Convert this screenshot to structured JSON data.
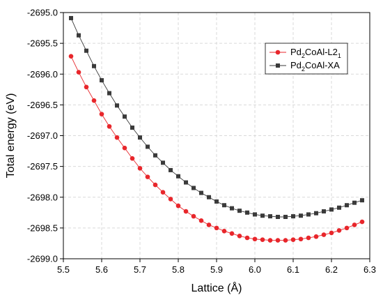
{
  "chart_data": {
    "type": "line",
    "xlabel": "Lattice (Å)",
    "ylabel": "Total energy (eV)",
    "xlim": [
      5.5,
      6.3
    ],
    "ylim": [
      -2699.0,
      -2695.0
    ],
    "x_ticks": [
      "5.5",
      "5.6",
      "5.7",
      "5.8",
      "5.9",
      "6.0",
      "6.1",
      "6.2",
      "6.3"
    ],
    "y_ticks": [
      "-2695.0",
      "-2695.5",
      "-2696.0",
      "-2696.5",
      "-2697.0",
      "-2697.5",
      "-2698.0",
      "-2698.5",
      "-2699.0"
    ],
    "grid": true,
    "legend_position": "top-right",
    "series": [
      {
        "name_main": "Pd",
        "name_sub1": "2",
        "name_mid": "CoAl-L2",
        "name_sub2": "1",
        "color": "#e8262b",
        "marker": "circle",
        "x": [
          5.52,
          5.54,
          5.56,
          5.58,
          5.6,
          5.62,
          5.64,
          5.66,
          5.68,
          5.7,
          5.72,
          5.74,
          5.76,
          5.78,
          5.8,
          5.82,
          5.84,
          5.86,
          5.88,
          5.9,
          5.92,
          5.94,
          5.96,
          5.98,
          6.0,
          6.02,
          6.04,
          6.06,
          6.08,
          6.1,
          6.12,
          6.14,
          6.16,
          6.18,
          6.2,
          6.22,
          6.24,
          6.26,
          6.28
        ],
        "y": [
          -2695.71,
          -2695.97,
          -2696.21,
          -2696.43,
          -2696.65,
          -2696.85,
          -2697.03,
          -2697.2,
          -2697.37,
          -2697.53,
          -2697.67,
          -2697.8,
          -2697.92,
          -2698.03,
          -2698.14,
          -2698.23,
          -2698.31,
          -2698.38,
          -2698.45,
          -2698.5,
          -2698.55,
          -2698.59,
          -2698.63,
          -2698.66,
          -2698.68,
          -2698.69,
          -2698.7,
          -2698.7,
          -2698.7,
          -2698.69,
          -2698.68,
          -2698.66,
          -2698.64,
          -2698.61,
          -2698.58,
          -2698.54,
          -2698.5,
          -2698.45,
          -2698.4
        ]
      },
      {
        "name_main": "Pd",
        "name_sub1": "2",
        "name_mid": "CoAl-XA",
        "name_sub2": "",
        "color": "#3a3a3a",
        "marker": "square",
        "x": [
          5.52,
          5.54,
          5.56,
          5.58,
          5.6,
          5.62,
          5.64,
          5.66,
          5.68,
          5.7,
          5.72,
          5.74,
          5.76,
          5.78,
          5.8,
          5.82,
          5.84,
          5.86,
          5.88,
          5.9,
          5.92,
          5.94,
          5.96,
          5.98,
          6.0,
          6.02,
          6.04,
          6.06,
          6.08,
          6.1,
          6.12,
          6.14,
          6.16,
          6.18,
          6.2,
          6.22,
          6.24,
          6.26,
          6.28
        ],
        "y": [
          -2695.09,
          -2695.37,
          -2695.62,
          -2695.87,
          -2696.1,
          -2696.31,
          -2696.51,
          -2696.69,
          -2696.87,
          -2697.03,
          -2697.18,
          -2697.32,
          -2697.44,
          -2697.56,
          -2697.66,
          -2697.76,
          -2697.85,
          -2697.93,
          -2698.0,
          -2698.07,
          -2698.13,
          -2698.18,
          -2698.22,
          -2698.25,
          -2698.28,
          -2698.3,
          -2698.31,
          -2698.32,
          -2698.32,
          -2698.31,
          -2698.3,
          -2698.28,
          -2698.26,
          -2698.23,
          -2698.2,
          -2698.17,
          -2698.13,
          -2698.09,
          -2698.05
        ]
      }
    ]
  }
}
